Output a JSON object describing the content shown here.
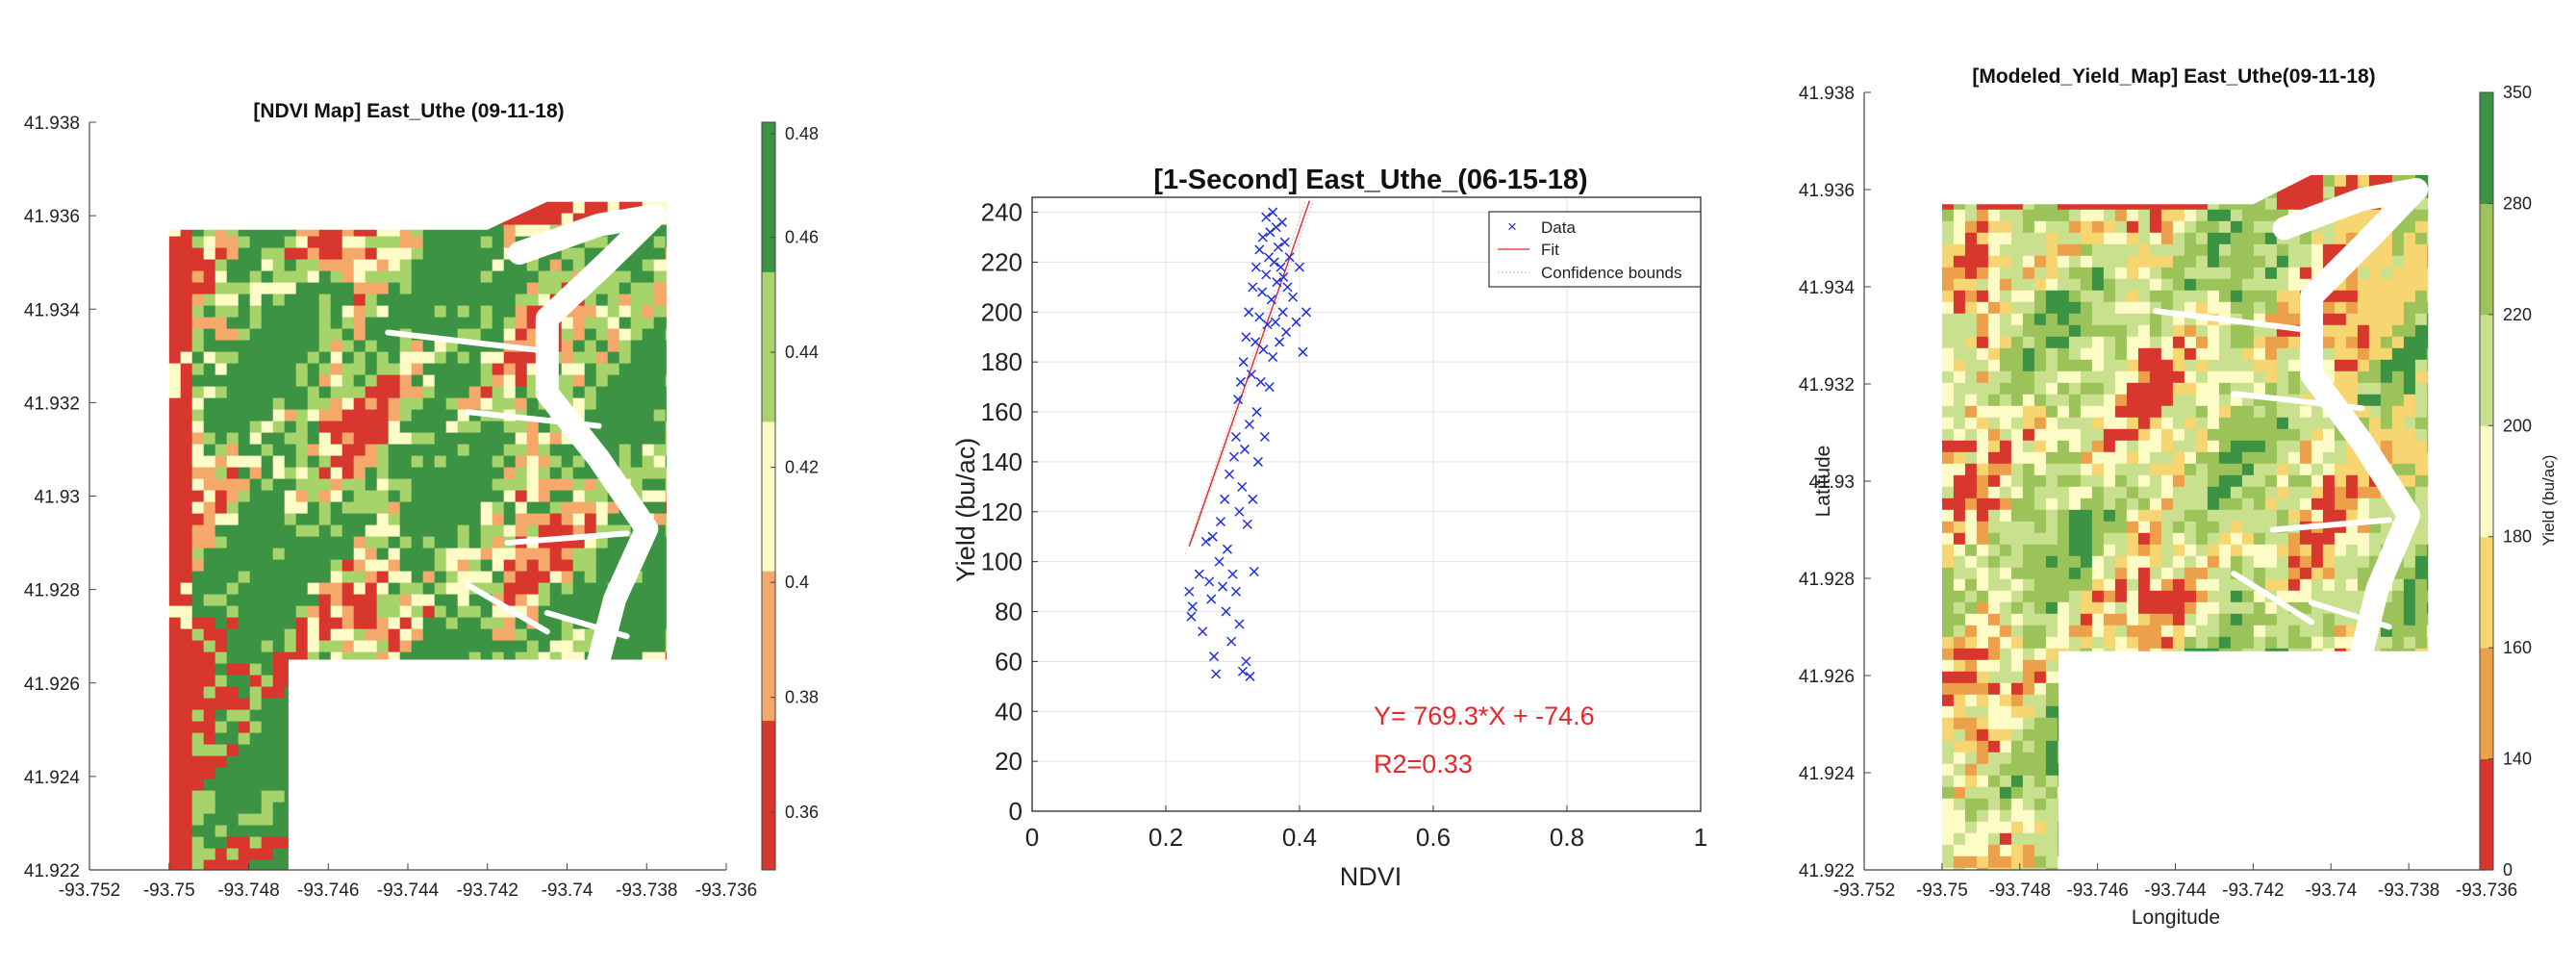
{
  "chart_data": [
    {
      "type": "heatmap",
      "title": "[NDVI Map] East_Uthe (09-11-18)",
      "xlabel": "",
      "ylabel": "",
      "xlim": [
        -93.752,
        -93.736
      ],
      "ylim": [
        41.922,
        41.938
      ],
      "x_ticks": [
        "-93.752",
        "-93.75",
        "-93.748",
        "-93.746",
        "-93.744",
        "-93.742",
        "-93.74",
        "-93.738",
        "-93.736"
      ],
      "y_ticks": [
        "41.922",
        "41.924",
        "41.926",
        "41.928",
        "41.93",
        "41.932",
        "41.934",
        "41.936",
        "41.938"
      ],
      "colorbar": {
        "range": [
          0.35,
          0.48
        ],
        "ticks": [
          "0.36",
          "0.38",
          "0.4",
          "0.42",
          "0.44",
          "0.46",
          "0.48"
        ],
        "bands": [
          {
            "from": 0.35,
            "to": 0.375,
            "color": "#d7372c"
          },
          {
            "from": 0.375,
            "to": 0.401,
            "color": "#f4a86a"
          },
          {
            "from": 0.401,
            "to": 0.427,
            "color": "#fefcc6"
          },
          {
            "from": 0.427,
            "to": 0.453,
            "color": "#a7d46a"
          },
          {
            "from": 0.453,
            "to": 0.48,
            "color": "#3d9344"
          }
        ]
      }
    },
    {
      "type": "scatter",
      "title": "[1-Second] East_Uthe_(06-15-18)",
      "xlabel": "NDVI",
      "ylabel": "Yield (bu/ac)",
      "xlim": [
        0,
        1
      ],
      "ylim": [
        0,
        246
      ],
      "x_ticks": [
        "0",
        "0.2",
        "0.4",
        "0.6",
        "0.8",
        "1"
      ],
      "y_ticks": [
        "0",
        "20",
        "40",
        "60",
        "80",
        "100",
        "120",
        "140",
        "160",
        "180",
        "200",
        "220",
        "240"
      ],
      "grid": true,
      "legend": {
        "placement": "top-right",
        "entries": [
          "Data",
          "Fit",
          "Confidence bounds"
        ]
      },
      "fit": {
        "slope": 769.3,
        "intercept": -74.6,
        "x_range": [
          0.235,
          0.415
        ]
      },
      "annotations": [
        "Y= 769.3*X + -74.6",
        "R2=0.33"
      ],
      "series": [
        {
          "name": "Data",
          "color": "#1f2fe0",
          "marker": "x",
          "points": [
            [
              0.235,
              88
            ],
            [
              0.24,
              82
            ],
            [
              0.238,
              78
            ],
            [
              0.25,
              95
            ],
            [
              0.255,
              72
            ],
            [
              0.26,
              108
            ],
            [
              0.265,
              92
            ],
            [
              0.268,
              85
            ],
            [
              0.27,
              110
            ],
            [
              0.272,
              62
            ],
            [
              0.275,
              55
            ],
            [
              0.28,
              100
            ],
            [
              0.282,
              116
            ],
            [
              0.285,
              90
            ],
            [
              0.288,
              125
            ],
            [
              0.29,
              80
            ],
            [
              0.292,
              105
            ],
            [
              0.295,
              135
            ],
            [
              0.298,
              68
            ],
            [
              0.3,
              95
            ],
            [
              0.302,
              142
            ],
            [
              0.305,
              150
            ],
            [
              0.305,
              88
            ],
            [
              0.308,
              165
            ],
            [
              0.31,
              120
            ],
            [
              0.31,
              75
            ],
            [
              0.312,
              172
            ],
            [
              0.314,
              130
            ],
            [
              0.315,
              56
            ],
            [
              0.316,
              180
            ],
            [
              0.318,
              145
            ],
            [
              0.32,
              60
            ],
            [
              0.32,
              190
            ],
            [
              0.322,
              115
            ],
            [
              0.324,
              200
            ],
            [
              0.325,
              155
            ],
            [
              0.326,
              54
            ],
            [
              0.328,
              175
            ],
            [
              0.33,
              210
            ],
            [
              0.33,
              125
            ],
            [
              0.332,
              96
            ],
            [
              0.334,
              188
            ],
            [
              0.335,
              218
            ],
            [
              0.336,
              160
            ],
            [
              0.338,
              140
            ],
            [
              0.34,
              225
            ],
            [
              0.34,
              198
            ],
            [
              0.342,
              172
            ],
            [
              0.344,
              208
            ],
            [
              0.345,
              230
            ],
            [
              0.346,
              185
            ],
            [
              0.348,
              150
            ],
            [
              0.35,
              215
            ],
            [
              0.35,
              238
            ],
            [
              0.352,
              195
            ],
            [
              0.354,
              222
            ],
            [
              0.355,
              170
            ],
            [
              0.356,
              232
            ],
            [
              0.358,
              205
            ],
            [
              0.36,
              240
            ],
            [
              0.36,
              182
            ],
            [
              0.362,
              220
            ],
            [
              0.364,
              196
            ],
            [
              0.365,
              234
            ],
            [
              0.366,
              212
            ],
            [
              0.368,
              226
            ],
            [
              0.37,
              188
            ],
            [
              0.372,
              218
            ],
            [
              0.374,
              236
            ],
            [
              0.375,
              200
            ],
            [
              0.376,
              214
            ],
            [
              0.378,
              228
            ],
            [
              0.38,
              192
            ],
            [
              0.382,
              210
            ],
            [
              0.385,
              222
            ],
            [
              0.39,
              206
            ],
            [
              0.395,
              196
            ],
            [
              0.4,
              218
            ],
            [
              0.405,
              184
            ],
            [
              0.41,
              200
            ]
          ]
        }
      ]
    },
    {
      "type": "heatmap",
      "title": "[Modeled_Yield_Map] East_Uthe(09-11-18)",
      "xlabel": "Longitude",
      "ylabel": "Latitude",
      "xlim": [
        -93.752,
        -93.736
      ],
      "ylim": [
        41.922,
        41.938
      ],
      "x_ticks": [
        "-93.752",
        "-93.75",
        "-93.748",
        "-93.746",
        "-93.744",
        "-93.742",
        "-93.74",
        "-93.738",
        "-93.736"
      ],
      "y_ticks": [
        "41.922",
        "41.924",
        "41.926",
        "41.928",
        "41.93",
        "41.932",
        "41.934",
        "41.936",
        "41.938"
      ],
      "colorbar": {
        "label": "Yield (bu/ac)",
        "ticks": [
          "0",
          "140",
          "160",
          "180",
          "200",
          "220",
          "280",
          "350"
        ],
        "bands": [
          {
            "from": "0",
            "to": "140",
            "color": "#d7372c"
          },
          {
            "from": "140",
            "to": "160",
            "color": "#eda04a"
          },
          {
            "from": "160",
            "to": "180",
            "color": "#f7d571"
          },
          {
            "from": "180",
            "to": "200",
            "color": "#fefcc6"
          },
          {
            "from": "200",
            "to": "220",
            "color": "#c9e08e"
          },
          {
            "from": "220",
            "to": "280",
            "color": "#9bc35a"
          },
          {
            "from": "280",
            "to": "350",
            "color": "#3d9344"
          }
        ]
      }
    }
  ]
}
